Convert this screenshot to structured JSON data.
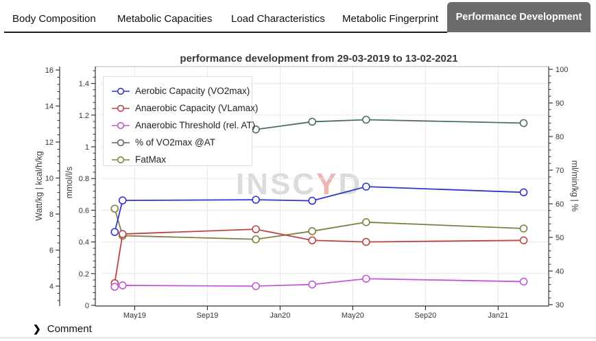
{
  "tabs": [
    {
      "label": "Body Composition",
      "active": false
    },
    {
      "label": "Metabolic Capacities",
      "active": false
    },
    {
      "label": "Load Characteristics",
      "active": false
    },
    {
      "label": "Metabolic Fingerprint",
      "active": false
    },
    {
      "label": "Performance Development",
      "active": true
    }
  ],
  "chart_title": "performance development from 29-03-2019 to 13-02-2021",
  "watermark": {
    "pre": "INSC",
    "accent": "Y",
    "post": "D"
  },
  "comment": {
    "chevron_icon": "chevron-right-icon",
    "label": "Comment"
  },
  "chart_data": {
    "type": "line",
    "title": "performance development from 29-03-2019 to 13-02-2021",
    "x_axis": {
      "tick_labels": [
        "May19",
        "Sep19",
        "Jan20",
        "May20",
        "Sep20",
        "Jan21"
      ]
    },
    "axes": {
      "left_outer": {
        "label": "Watt/kg | kcal/h/kg",
        "ticks": [
          4,
          6,
          8,
          10,
          12,
          14,
          16
        ],
        "range": [
          2.9,
          16.2
        ]
      },
      "left_inner": {
        "label": "mmol/l/s",
        "ticks": [
          0,
          0.2,
          0.4,
          0.6,
          0.8,
          1,
          1.2,
          1.4
        ],
        "range": [
          0,
          1.51
        ]
      },
      "right": {
        "label": "ml/min/kg | %",
        "ticks": [
          30,
          40,
          50,
          60,
          70,
          80,
          90,
          100
        ],
        "range": [
          30,
          100.8
        ]
      }
    },
    "test_dates": [
      "2019-03-28",
      "2019-04-11",
      "2019-11-21",
      "2020-02-24",
      "2020-05-23",
      "2021-02-13"
    ],
    "series": [
      {
        "name": "Aerobic Capacity (VO2max)",
        "axis": "right",
        "color": "#3434cf",
        "values": [
          51.6,
          61,
          61.2,
          60.9,
          65.1,
          63.4
        ]
      },
      {
        "name": "Anaerobic Capacity (VLamax)",
        "axis": "left_inner",
        "color": "#bc4343",
        "values": [
          0.14,
          0.45,
          0.48,
          0.41,
          0.4,
          0.41
        ]
      },
      {
        "name": "Anaerobic Threshold (rel. AT)",
        "axis": "left_outer",
        "color": "#c057d6",
        "values": [
          3.96,
          4.04,
          4,
          4.09,
          4.41,
          4.25
        ]
      },
      {
        "name": "% of VO2max @AT",
        "axis": "right",
        "color": "#4e6b66",
        "values": [
          null,
          null,
          82.1,
          84.4,
          85,
          84
        ]
      },
      {
        "name": "FatMax",
        "axis": "left_outer",
        "color": "#7f7f3f",
        "values": [
          8.3,
          6.8,
          6.6,
          7.05,
          7.55,
          7.2
        ]
      }
    ],
    "legend_position": "top-left",
    "grid": true
  }
}
